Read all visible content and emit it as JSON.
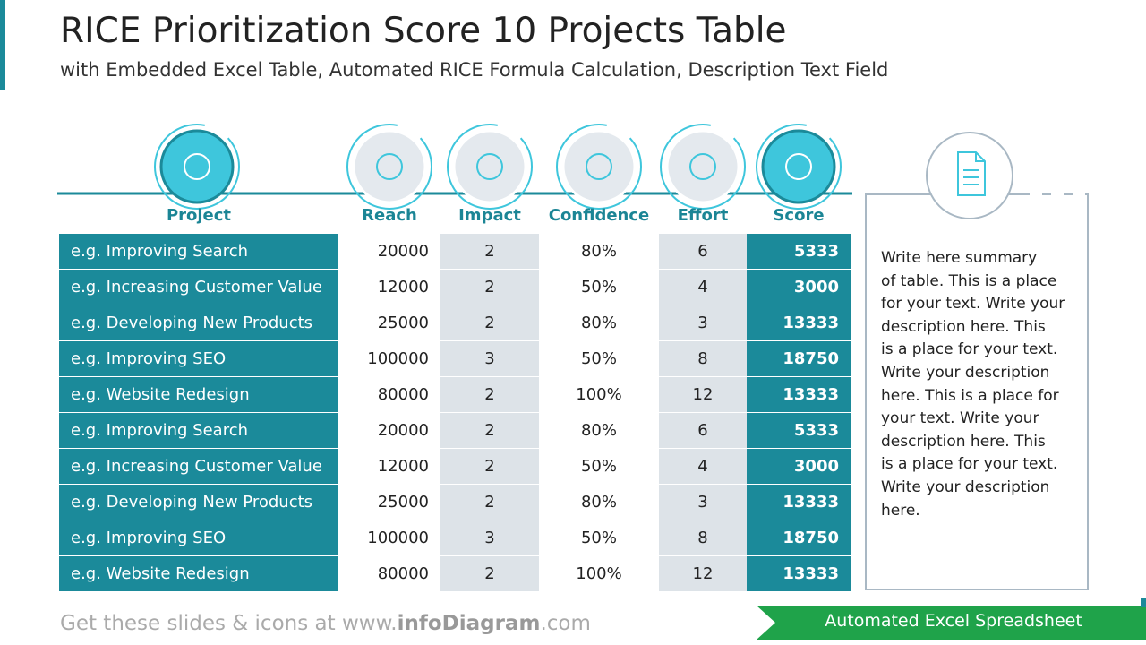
{
  "header": {
    "title": "RICE Prioritization Score 10 Projects Table",
    "subtitle": "with Embedded Excel Table, Automated RICE Formula Calculation, Description Text Field"
  },
  "table": {
    "columns": [
      "Project",
      "Reach",
      "Impact",
      "Confidence",
      "Effort",
      "Score"
    ],
    "rows": [
      [
        "e.g. Improving Search",
        20000,
        2,
        "80%",
        6,
        5333
      ],
      [
        "e.g. Increasing Customer Value",
        12000,
        2,
        "50%",
        4,
        3000
      ],
      [
        "e.g. Developing New Products",
        25000,
        2,
        "80%",
        3,
        13333
      ],
      [
        "e.g. Improving SEO",
        100000,
        3,
        "50%",
        8,
        18750
      ],
      [
        "e.g. Website Redesign",
        80000,
        2,
        "100%",
        12,
        13333
      ],
      [
        "e.g. Improving Search",
        20000,
        2,
        "80%",
        6,
        5333
      ],
      [
        "e.g. Increasing Customer Value",
        12000,
        2,
        "50%",
        4,
        3000
      ],
      [
        "e.g. Developing New Products",
        25000,
        2,
        "80%",
        3,
        13333
      ],
      [
        "e.g. Improving SEO",
        100000,
        3,
        "50%",
        8,
        18750
      ],
      [
        "e.g. Website Redesign",
        80000,
        2,
        "100%",
        12,
        13333
      ]
    ]
  },
  "description": {
    "lines": [
      "Write here summary",
      "of table. This is a place",
      "for your text. Write your",
      "description here. This",
      "is a place for your text.",
      "Write your description",
      "here. This is a place for",
      "your text. Write your",
      "description here. This",
      "is a place for your text.",
      "Write your description",
      "here."
    ]
  },
  "footer": {
    "parts": [
      "Get these slides & icons at www.",
      "infoDiagram",
      ".com"
    ],
    "badge": "Automated Excel Spreadsheet"
  }
}
